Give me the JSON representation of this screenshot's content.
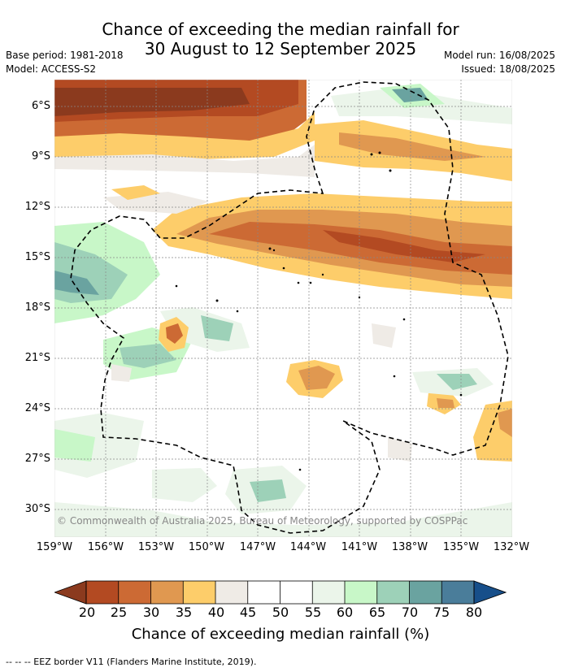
{
  "title": {
    "line1": "Chance of exceeding the median rainfall for",
    "line2": "30 August to 12 September 2025"
  },
  "meta": {
    "base_period": "Base period: 1981-2018",
    "model": "Model: ACCESS-S2",
    "model_run": "Model run: 16/08/2025",
    "issued": "Issued: 18/08/2025"
  },
  "lat_labels": [
    "6°S",
    "9°S",
    "12°S",
    "15°S",
    "18°S",
    "21°S",
    "24°S",
    "27°S",
    "30°S"
  ],
  "lon_labels": [
    "159°W",
    "156°W",
    "153°W",
    "150°W",
    "147°W",
    "144°W",
    "141°W",
    "138°W",
    "135°W",
    "132°W"
  ],
  "copyright": "© Commonwealth of Australia 2025, Bureau of Meteorology, supported by COSPPac",
  "colorbar": {
    "labels": [
      "20",
      "25",
      "30",
      "35",
      "40",
      "45",
      "50",
      "55",
      "60",
      "65",
      "70",
      "75",
      "80"
    ],
    "colors": [
      "#8b3a1e",
      "#b34a22",
      "#cc6a34",
      "#e09850",
      "#fdcd6a",
      "#efebe6",
      "#ffffff",
      "#ffffff",
      "#ebf5ea",
      "#c8f7c8",
      "#9dd1b8",
      "#6aa3a0",
      "#4a7d9a",
      "#174f8a"
    ],
    "title": "Chance of exceeding median rainfall (%)"
  },
  "legend": "--  --  -- EEZ border V11 (Flanders Marine Institute, 2019)."
}
